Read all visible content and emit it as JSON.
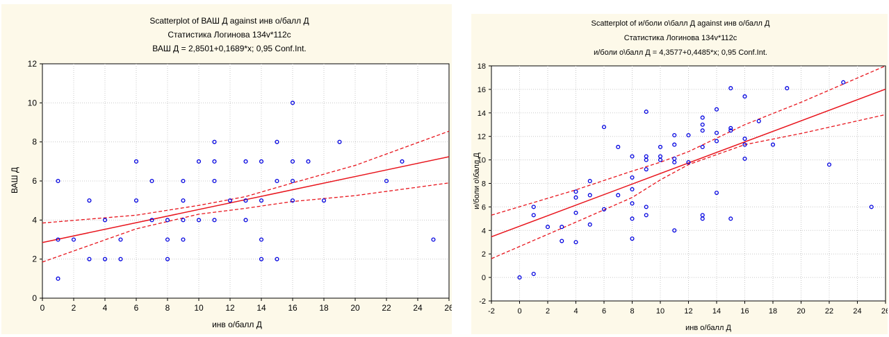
{
  "chart_data": [
    {
      "type": "scatter",
      "title": "Scatterplot of  ВАШ Д against инв  о/балл Д",
      "subtitle": "Статистика Логинова 134v*112c",
      "equation": "ВАШ Д = 2,8501+0,1689*x;  0,95 Conf.Int.",
      "xlabel": "инв  о/балл Д",
      "ylabel": "ВАШ Д",
      "xlim": [
        0,
        26
      ],
      "ylim": [
        0,
        12
      ],
      "xticks": [
        "0",
        "2",
        "4",
        "6",
        "8",
        "10",
        "12",
        "14",
        "16",
        "18",
        "20",
        "22",
        "24",
        "26"
      ],
      "yticks": [
        "0",
        "2",
        "4",
        "6",
        "8",
        "10",
        "12"
      ],
      "grid": true,
      "regression": {
        "intercept": 2.8501,
        "slope": 0.1689
      },
      "confidence_band": {
        "x": [
          0,
          6,
          10,
          13,
          16,
          20,
          26
        ],
        "lower": [
          1.85,
          3.55,
          4.3,
          4.6,
          4.95,
          5.25,
          5.9
        ],
        "upper": [
          3.85,
          4.25,
          4.75,
          5.2,
          5.9,
          6.8,
          8.55
        ]
      },
      "points": [
        [
          1,
          6
        ],
        [
          1,
          3
        ],
        [
          1,
          1
        ],
        [
          2,
          3
        ],
        [
          3,
          5
        ],
        [
          3,
          2
        ],
        [
          4,
          4
        ],
        [
          4,
          2
        ],
        [
          5,
          3
        ],
        [
          5,
          2
        ],
        [
          6,
          7
        ],
        [
          6,
          5
        ],
        [
          7,
          6
        ],
        [
          7,
          4
        ],
        [
          8,
          4
        ],
        [
          8,
          3
        ],
        [
          8,
          2
        ],
        [
          9,
          6
        ],
        [
          9,
          5
        ],
        [
          9,
          4
        ],
        [
          9,
          3
        ],
        [
          10,
          7
        ],
        [
          10,
          4
        ],
        [
          11,
          8
        ],
        [
          11,
          7
        ],
        [
          11,
          6
        ],
        [
          11,
          4
        ],
        [
          12,
          5
        ],
        [
          13,
          7
        ],
        [
          13,
          5
        ],
        [
          13,
          4
        ],
        [
          14,
          7
        ],
        [
          14,
          5
        ],
        [
          14,
          3
        ],
        [
          14,
          2
        ],
        [
          15,
          8
        ],
        [
          15,
          6
        ],
        [
          15,
          2
        ],
        [
          16,
          10
        ],
        [
          16,
          7
        ],
        [
          16,
          6
        ],
        [
          16,
          5
        ],
        [
          17,
          7
        ],
        [
          18,
          5
        ],
        [
          19,
          8
        ],
        [
          22,
          6
        ],
        [
          23,
          7
        ],
        [
          25,
          3
        ]
      ]
    },
    {
      "type": "scatter",
      "title": "Scatterplot of и/боли о\\балл Д against инв о/балл Д",
      "subtitle": "Статистика Логинова 134v*112c",
      "equation": "и/боли о\\балл Д = 4,3577+0,4485*x; 0,95 Conf.Int.",
      "xlabel": "инв о/балл Д",
      "ylabel": "и/боли о\\балл Д",
      "xlim": [
        -2,
        26
      ],
      "ylim": [
        -2,
        18
      ],
      "xticks": [
        "-2",
        "0",
        "2",
        "4",
        "6",
        "8",
        "10",
        "12",
        "14",
        "16",
        "18",
        "20",
        "22",
        "24",
        "26"
      ],
      "yticks": [
        "-2",
        "0",
        "2",
        "4",
        "6",
        "8",
        "10",
        "12",
        "14",
        "16",
        "18"
      ],
      "grid": true,
      "regression": {
        "intercept": 4.3577,
        "slope": 0.4485
      },
      "confidence_band": {
        "x": [
          -2,
          4,
          8,
          10,
          12,
          16,
          20,
          26
        ],
        "lower": [
          1.6,
          4.7,
          6.8,
          8.3,
          9.6,
          11.3,
          12.25,
          13.85
        ],
        "upper": [
          5.3,
          7.45,
          9.05,
          9.8,
          10.7,
          13.0,
          14.9,
          18.0
        ]
      },
      "points": [
        [
          0,
          0
        ],
        [
          1,
          0.3
        ],
        [
          1,
          6
        ],
        [
          1,
          5.3
        ],
        [
          2,
          4.3
        ],
        [
          3,
          4.3
        ],
        [
          3,
          3.1
        ],
        [
          4,
          7.3
        ],
        [
          4,
          6.8
        ],
        [
          4,
          5.5
        ],
        [
          4,
          3
        ],
        [
          5,
          8.2
        ],
        [
          5,
          7
        ],
        [
          5,
          4.5
        ],
        [
          6,
          12.8
        ],
        [
          6,
          5.8
        ],
        [
          7,
          11.1
        ],
        [
          7,
          7
        ],
        [
          8,
          10.3
        ],
        [
          8,
          8.5
        ],
        [
          8,
          7.5
        ],
        [
          8,
          6.3
        ],
        [
          8,
          5
        ],
        [
          8,
          3.3
        ],
        [
          9,
          14.1
        ],
        [
          9,
          10.3
        ],
        [
          9,
          10
        ],
        [
          9,
          9.2
        ],
        [
          9,
          6
        ],
        [
          9,
          5.3
        ],
        [
          10,
          11.1
        ],
        [
          10,
          10.3
        ],
        [
          10,
          10
        ],
        [
          11,
          12.1
        ],
        [
          11,
          11.3
        ],
        [
          11,
          10.1
        ],
        [
          11,
          9.8
        ],
        [
          11,
          4
        ],
        [
          12,
          12.1
        ],
        [
          12,
          9.8
        ],
        [
          13,
          13.6
        ],
        [
          13,
          13
        ],
        [
          13,
          12.5
        ],
        [
          13,
          11.1
        ],
        [
          13,
          5.3
        ],
        [
          13,
          5
        ],
        [
          14,
          14.3
        ],
        [
          14,
          12.3
        ],
        [
          14,
          11.6
        ],
        [
          14,
          7.2
        ],
        [
          15,
          16.1
        ],
        [
          15,
          12.7
        ],
        [
          15,
          12.5
        ],
        [
          15,
          5
        ],
        [
          16,
          15.4
        ],
        [
          16,
          11.8
        ],
        [
          16,
          11.3
        ],
        [
          16,
          10.1
        ],
        [
          17,
          13.3
        ],
        [
          18,
          11.3
        ],
        [
          19,
          16.1
        ],
        [
          22,
          9.6
        ],
        [
          23,
          16.6
        ],
        [
          25,
          6
        ]
      ]
    }
  ]
}
